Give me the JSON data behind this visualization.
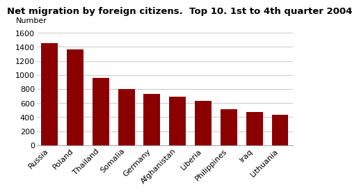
{
  "title": "Net migration by foreign citizens.  Top 10. 1st to 4th quarter 2004",
  "ylabel": "Number",
  "categories": [
    "Russia",
    "Poland",
    "Thailand",
    "Somalia",
    "Germany",
    "Afghanistan",
    "Liberia",
    "Philippines",
    "Iraq",
    "Lithuania"
  ],
  "values": [
    1455,
    1360,
    960,
    800,
    735,
    690,
    630,
    510,
    470,
    430
  ],
  "bar_color": "#8B0000",
  "ylim": [
    0,
    1600
  ],
  "yticks": [
    0,
    200,
    400,
    600,
    800,
    1000,
    1200,
    1400,
    1600
  ],
  "background_color": "#ffffff",
  "grid_color": "#cccccc",
  "title_fontsize": 9.5,
  "tick_fontsize": 8,
  "label_fontsize": 8
}
